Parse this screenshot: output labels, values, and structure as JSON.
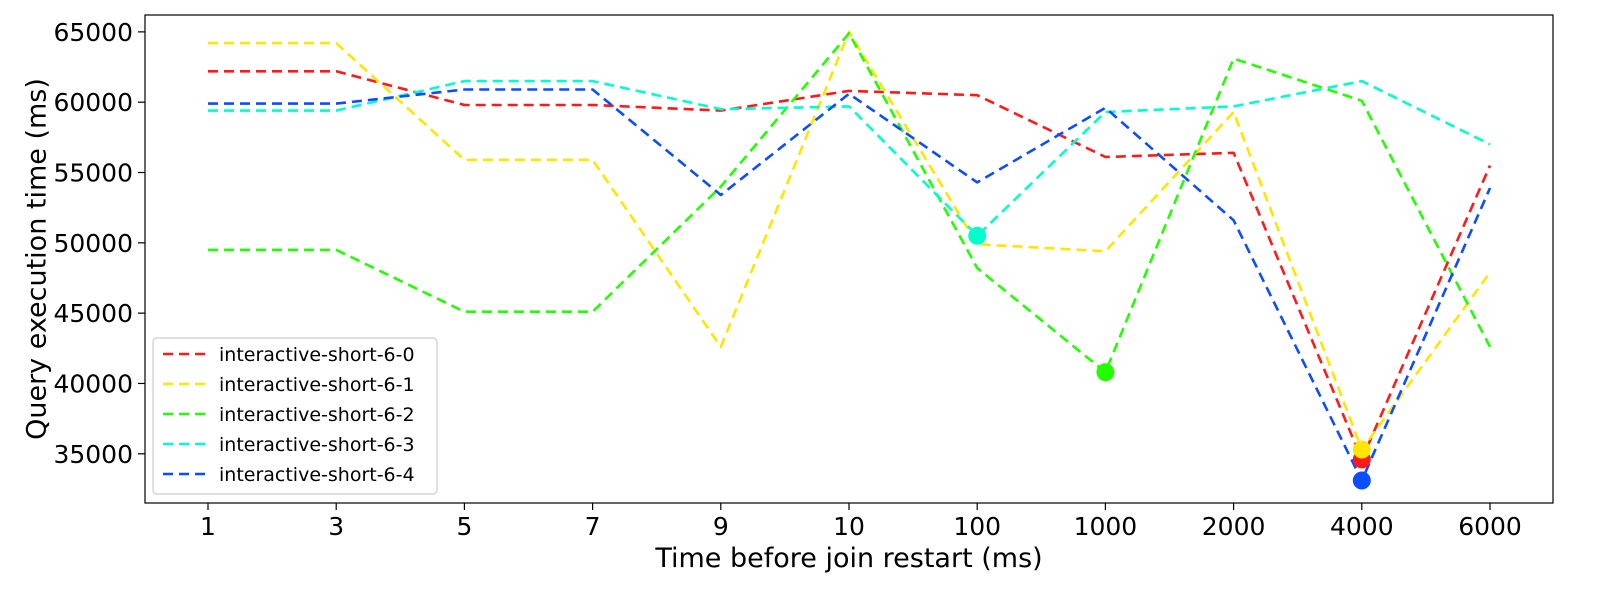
{
  "chart_data": {
    "type": "line",
    "title": "",
    "xlabel": "Time before join restart (ms)",
    "ylabel": "Query execution time (ms)",
    "categories": [
      "1",
      "3",
      "5",
      "7",
      "9",
      "10",
      "100",
      "1000",
      "2000",
      "4000",
      "6000"
    ],
    "ylim": [
      31500,
      66200
    ],
    "yticks": [
      35000,
      40000,
      45000,
      50000,
      55000,
      60000,
      65000
    ],
    "ytick_labels": [
      "35000",
      "40000",
      "45000",
      "50000",
      "55000",
      "60000",
      "65000"
    ],
    "grid": false,
    "legend_position": "lower-left",
    "line_style": "dashed",
    "series": [
      {
        "name": "interactive-short-6-0",
        "color": "#ff1a1a",
        "values": [
          62200,
          62200,
          59800,
          59800,
          59400,
          60800,
          60500,
          56100,
          56400,
          34600,
          55500
        ],
        "marker_index": 9
      },
      {
        "name": "interactive-short-6-1",
        "color": "#ffe600",
        "values": [
          64200,
          64200,
          55900,
          55900,
          42600,
          65000,
          49900,
          49400,
          59300,
          35300,
          47900
        ],
        "marker_index": 9
      },
      {
        "name": "interactive-short-6-2",
        "color": "#22ff00",
        "values": [
          49500,
          49500,
          45100,
          45100,
          54000,
          64900,
          48200,
          40800,
          63100,
          60100,
          42600
        ],
        "marker_index": 7
      },
      {
        "name": "interactive-short-6-3",
        "color": "#00ffcc",
        "values": [
          59400,
          59400,
          61500,
          61500,
          59500,
          59700,
          50500,
          59300,
          59700,
          61500,
          57000
        ],
        "marker_index": 6
      },
      {
        "name": "interactive-short-6-4",
        "color": "#0b4dff",
        "values": [
          59900,
          59900,
          60900,
          60900,
          53400,
          60600,
          54300,
          59600,
          51600,
          33100,
          53900
        ],
        "marker_index": 9
      }
    ]
  }
}
